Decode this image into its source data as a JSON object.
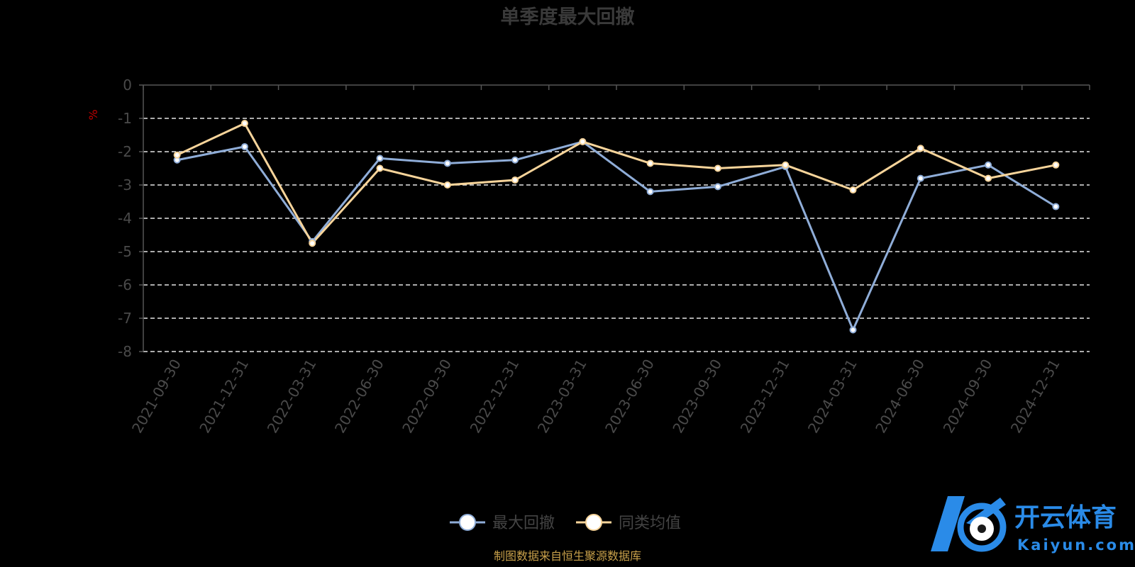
{
  "chart_data": {
    "type": "line",
    "title": "单季度最大回撤",
    "unit": "%",
    "categories": [
      "2021-09-30",
      "2021-12-31",
      "2022-03-31",
      "2022-06-30",
      "2022-09-30",
      "2022-12-31",
      "2023-03-31",
      "2023-06-30",
      "2023-09-30",
      "2023-12-31",
      "2024-03-31",
      "2024-06-30",
      "2024-09-30",
      "2024-12-31"
    ],
    "y_ticks": [
      "0",
      "-1",
      "-2",
      "-3",
      "-4",
      "-5",
      "-6",
      "-7",
      "-8"
    ],
    "ylim": [
      -8,
      0
    ],
    "grid": "dashed-horizontal",
    "legend_position": "bottom-center",
    "series": [
      {
        "name": "最大回撤",
        "color": "#8fadd8",
        "values": [
          -2.25,
          -1.85,
          -4.7,
          -2.2,
          -2.35,
          -2.25,
          -1.7,
          -3.2,
          -3.05,
          -2.45,
          -7.35,
          -2.8,
          -2.4,
          -3.65
        ]
      },
      {
        "name": "同类均值",
        "color": "#f7d49a",
        "values": [
          -2.1,
          -1.15,
          -4.75,
          -2.5,
          -3.0,
          -2.85,
          -1.7,
          -2.35,
          -2.5,
          -2.4,
          -3.15,
          -1.9,
          -2.8,
          -2.4
        ]
      }
    ]
  },
  "footer": "制图数据来自恒生聚源数据库",
  "watermark": {
    "brand": "开云体育",
    "domain": "Kaiyun.com",
    "color": "#2a8be8"
  }
}
